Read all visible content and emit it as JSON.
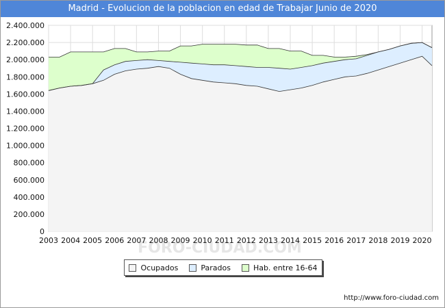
{
  "header": {
    "title": "Madrid - Evolucion de la poblacion en edad de Trabajar Junio de 2020"
  },
  "watermark": "FORO-CIUDAD.COM",
  "footer": {
    "url": "http://www.foro-ciudad.com"
  },
  "colors": {
    "title_bg": "#4f86d8",
    "ocupados_fill": "#f4f4f4",
    "parados_fill": "#ddeeff",
    "hab_fill": "#ddffcc",
    "line": "#333333",
    "grid": "#dddddd"
  },
  "chart_data": {
    "type": "area",
    "title": "Madrid - Evolucion de la poblacion en edad de Trabajar Junio de 2020",
    "xlabel": "",
    "ylabel": "",
    "xlim": [
      2003,
      2020.45
    ],
    "ylim": [
      0,
      2400000
    ],
    "grid": true,
    "legend_position": "bottom",
    "x_ticks": [
      "2003",
      "2004",
      "2005",
      "2006",
      "2007",
      "2008",
      "2009",
      "2010",
      "2011",
      "2012",
      "2013",
      "2014",
      "2015",
      "2016",
      "2017",
      "2018",
      "2019",
      "2020"
    ],
    "y_ticks": [
      "0",
      "200.000",
      "400.000",
      "600.000",
      "800.000",
      "1.000.000",
      "1.200.000",
      "1.400.000",
      "1.600.000",
      "1.800.000",
      "2.000.000",
      "2.200.000",
      "2.400.000"
    ],
    "y_tick_values": [
      0,
      200000,
      400000,
      600000,
      800000,
      1000000,
      1200000,
      1400000,
      1600000,
      1800000,
      2000000,
      2200000,
      2400000
    ],
    "x": [
      2003.0,
      2003.5,
      2004.0,
      2004.5,
      2005.0,
      2005.5,
      2006.0,
      2006.5,
      2007.0,
      2007.5,
      2008.0,
      2008.5,
      2009.0,
      2009.5,
      2010.0,
      2010.5,
      2011.0,
      2011.5,
      2012.0,
      2012.5,
      2013.0,
      2013.5,
      2014.0,
      2014.5,
      2015.0,
      2015.5,
      2016.0,
      2016.5,
      2017.0,
      2017.5,
      2018.0,
      2018.5,
      2019.0,
      2019.5,
      2020.0,
      2020.45
    ],
    "series": [
      {
        "name": "Ocupados",
        "values": [
          1640000,
          1670000,
          1690000,
          1700000,
          1720000,
          1760000,
          1830000,
          1870000,
          1890000,
          1900000,
          1920000,
          1900000,
          1830000,
          1780000,
          1760000,
          1740000,
          1730000,
          1720000,
          1700000,
          1690000,
          1660000,
          1630000,
          1650000,
          1670000,
          1700000,
          1740000,
          1770000,
          1800000,
          1810000,
          1840000,
          1880000,
          1920000,
          1960000,
          2000000,
          2040000,
          1930000
        ]
      },
      {
        "name": "Parados",
        "values": [
          1640000,
          1670000,
          1690000,
          1700000,
          1720000,
          1880000,
          1940000,
          1980000,
          1990000,
          2000000,
          1990000,
          1980000,
          1970000,
          1960000,
          1950000,
          1940000,
          1940000,
          1930000,
          1920000,
          1910000,
          1910000,
          1900000,
          1890000,
          1910000,
          1930000,
          1960000,
          1980000,
          2000000,
          2010000,
          2050000,
          2090000,
          2120000,
          2160000,
          2190000,
          2200000,
          2140000
        ]
      },
      {
        "name": "Hab. entre 16-64",
        "values": [
          2030000,
          2030000,
          2090000,
          2090000,
          2090000,
          2090000,
          2130000,
          2130000,
          2090000,
          2090000,
          2100000,
          2100000,
          2160000,
          2160000,
          2180000,
          2180000,
          2180000,
          2180000,
          2170000,
          2170000,
          2130000,
          2130000,
          2100000,
          2100000,
          2050000,
          2050000,
          2030000,
          2030000,
          2040000,
          2060000,
          2090000,
          2120000,
          2160000,
          2190000,
          2200000,
          2140000
        ]
      }
    ]
  }
}
